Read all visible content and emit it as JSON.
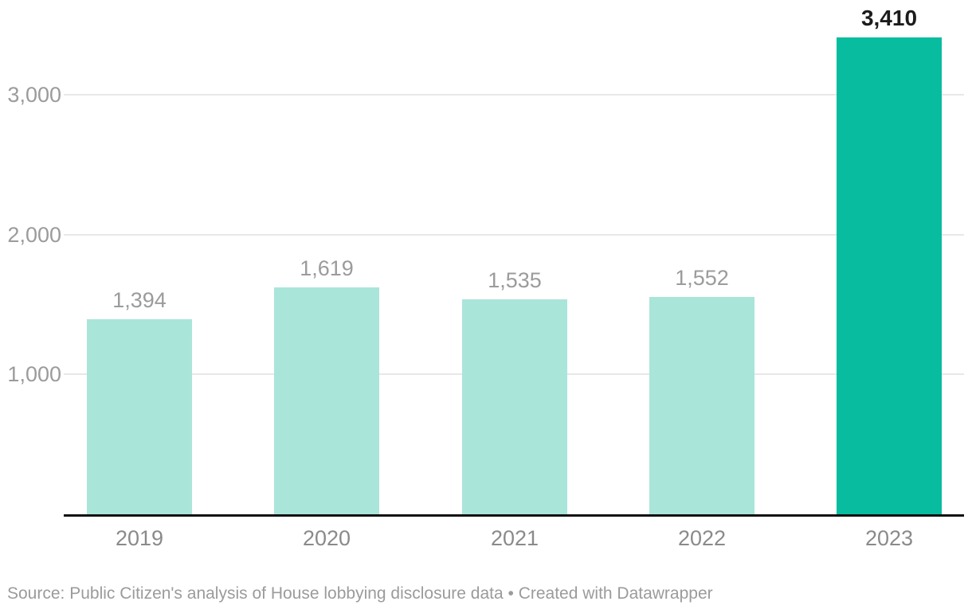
{
  "chart_data": {
    "type": "bar",
    "categories": [
      "2019",
      "2020",
      "2021",
      "2022",
      "2023"
    ],
    "values": [
      1394,
      1619,
      1535,
      1552,
      3410
    ],
    "value_labels": [
      "1,394",
      "1,619",
      "1,535",
      "1,552",
      "3,410"
    ],
    "highlight_index": 4,
    "title": "",
    "xlabel": "",
    "ylabel": "",
    "ylim": [
      0,
      3410
    ],
    "yticks": [
      1000,
      2000,
      3000
    ],
    "ytick_labels": [
      "1,000",
      "2,000",
      "3,000"
    ],
    "grid": true,
    "legend": false,
    "colors": {
      "bar_default": "#aae5da",
      "bar_highlight": "#08bca0",
      "grid_line": "#e8e8e8",
      "axis_line": "#111111",
      "y_tick_text": "#9b9b9b",
      "x_tick_text": "#8a8a8a",
      "value_label_default": "#9b9b9b",
      "value_label_highlight": "#1c1c1c"
    }
  },
  "footer": {
    "source_text": "Source: Public Citizen's analysis of House lobbying disclosure data • Created with Datawrapper"
  }
}
